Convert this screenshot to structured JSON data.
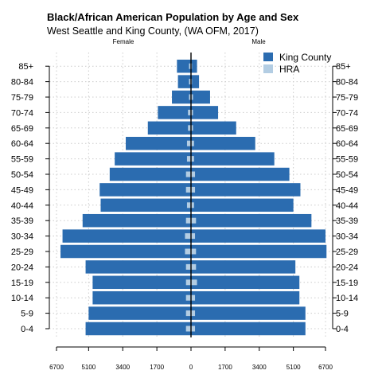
{
  "chart_data": {
    "type": "bar",
    "orientation": "horizontal-population-pyramid",
    "title": "Black/African American Population by Age and Sex",
    "subtitle": "West Seattle and King County, (WA OFM, 2017)",
    "left_label": "Female",
    "right_label": "Male",
    "categories": [
      "0-4",
      "5-9",
      "10-14",
      "15-19",
      "20-24",
      "25-29",
      "30-34",
      "35-39",
      "40-44",
      "45-49",
      "50-54",
      "55-59",
      "60-64",
      "65-69",
      "70-74",
      "75-79",
      "80-84",
      "85+"
    ],
    "x_ticks": [
      "6700",
      "5100",
      "3400",
      "1700",
      "0",
      "1700",
      "3400",
      "5100",
      "6700"
    ],
    "x_tick_values": [
      -6700,
      -5100,
      -3400,
      -1700,
      0,
      1700,
      3400,
      5100,
      6700
    ],
    "xlim": [
      -6700,
      6700
    ],
    "grid": true,
    "legend_position": "top-right",
    "legend": [
      "King County",
      "HRA"
    ],
    "colors": {
      "King County": "#2b6cb0",
      "HRA": "#b3cde3",
      "center_line": "#000000",
      "grid": "#cccccc"
    },
    "series": [
      {
        "name": "King County",
        "female": [
          5250,
          5100,
          4900,
          4900,
          5250,
          6500,
          6400,
          5400,
          4500,
          4550,
          4050,
          3800,
          3250,
          2150,
          1650,
          950,
          650,
          700
        ],
        "male": [
          5700,
          5700,
          5400,
          5400,
          5200,
          6750,
          6700,
          6000,
          5100,
          5450,
          4900,
          4150,
          3200,
          2250,
          1350,
          950,
          400,
          300
        ]
      },
      {
        "name": "HRA",
        "female": [
          250,
          250,
          250,
          250,
          250,
          300,
          300,
          250,
          200,
          250,
          250,
          200,
          200,
          150,
          150,
          100,
          100,
          100
        ],
        "male": [
          200,
          200,
          200,
          300,
          250,
          250,
          200,
          250,
          150,
          200,
          200,
          150,
          150,
          100,
          100,
          100,
          50,
          50
        ]
      }
    ]
  }
}
